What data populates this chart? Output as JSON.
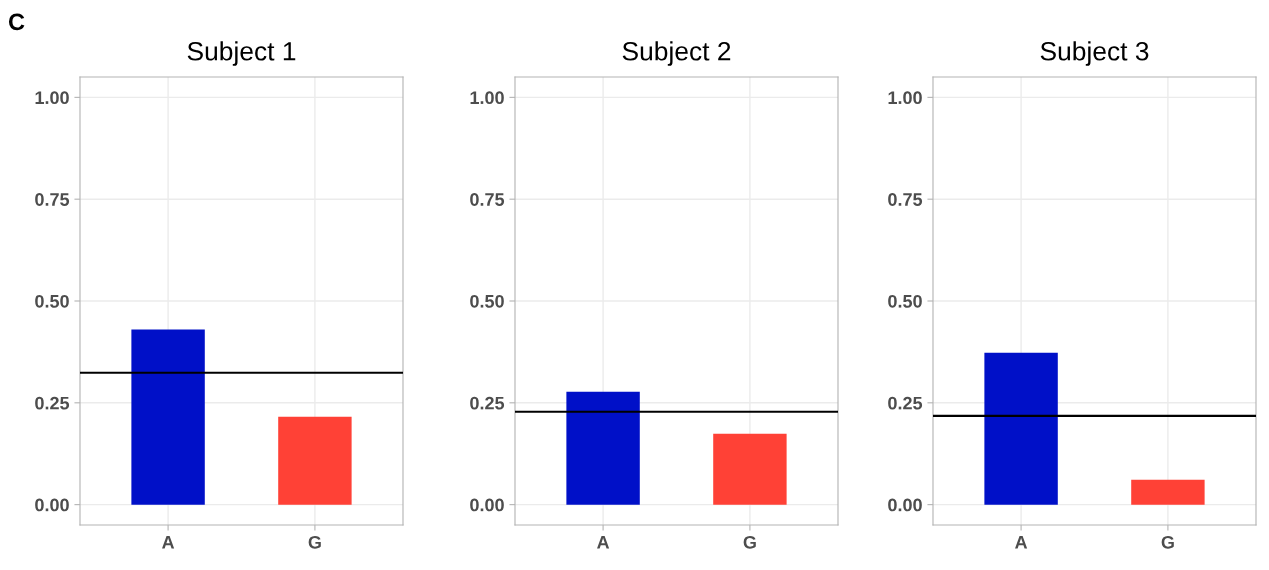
{
  "chart_data": [
    {
      "type": "bar",
      "title": "Subject 1",
      "annotations": [
        "C"
      ],
      "categories": [
        "A",
        "G"
      ],
      "values": [
        0.43,
        0.216
      ],
      "colors": [
        "#0010c8",
        "#ff4136"
      ],
      "ylim": [
        -0.05,
        1.05
      ],
      "yticks": [
        {
          "value": 0,
          "label": "0.00"
        },
        {
          "value": 0.25,
          "label": "0.25"
        },
        {
          "value": 0.5,
          "label": "0.50"
        },
        {
          "value": 0.75,
          "label": "0.75"
        },
        {
          "value": 1,
          "label": "1.00"
        }
      ],
      "grid": true,
      "ref_lines": [
        {
          "axis": "y",
          "value": 0.324,
          "color": "#000000"
        }
      ]
    },
    {
      "type": "bar",
      "title": "Subject 2",
      "categories": [
        "A",
        "G"
      ],
      "values": [
        0.277,
        0.174
      ],
      "colors": [
        "#0010c8",
        "#ff4136"
      ],
      "ylim": [
        -0.05,
        1.05
      ],
      "yticks": [
        {
          "value": 0,
          "label": "0.00"
        },
        {
          "value": 0.25,
          "label": "0.25"
        },
        {
          "value": 0.5,
          "label": "0.50"
        },
        {
          "value": 0.75,
          "label": "0.75"
        },
        {
          "value": 1,
          "label": "1.00"
        }
      ],
      "grid": true,
      "ref_lines": [
        {
          "axis": "y",
          "value": 0.228,
          "color": "#000000"
        }
      ]
    },
    {
      "type": "bar",
      "title": "Subject 3",
      "categories": [
        "A",
        "G"
      ],
      "values": [
        0.373,
        0.061
      ],
      "colors": [
        "#0010c8",
        "#ff4136"
      ],
      "ylim": [
        -0.05,
        1.05
      ],
      "yticks": [
        {
          "value": 0,
          "label": "0.00"
        },
        {
          "value": 0.25,
          "label": "0.25"
        },
        {
          "value": 0.5,
          "label": "0.50"
        },
        {
          "value": 0.75,
          "label": "0.75"
        },
        {
          "value": 1,
          "label": "1.00"
        }
      ],
      "grid": true,
      "ref_lines": [
        {
          "axis": "y",
          "value": 0.218,
          "color": "#000000"
        }
      ]
    }
  ]
}
